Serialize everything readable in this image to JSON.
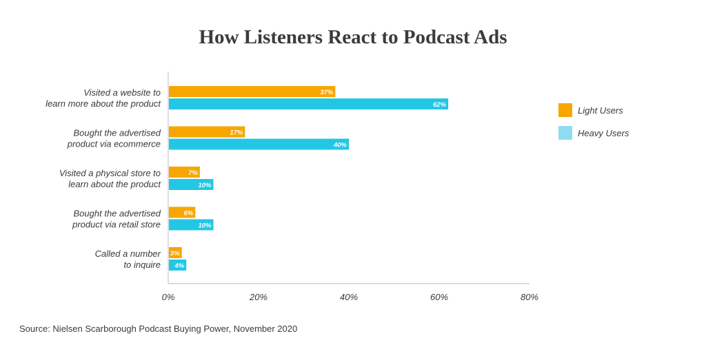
{
  "chart_data": {
    "type": "bar",
    "orientation": "horizontal",
    "title": "How Listeners React to Podcast Ads",
    "categories": [
      [
        "Visited a website to",
        "learn more about the product"
      ],
      [
        "Bought the advertised",
        "product via ecommerce"
      ],
      [
        "Visited a physical store to",
        "learn about the product"
      ],
      [
        "Bought the advertised",
        "product via retail store"
      ],
      [
        "Called a number",
        "to inquire"
      ]
    ],
    "series": [
      {
        "name": "Light Users",
        "color": "#F7A600",
        "values": [
          37,
          17,
          7,
          6,
          3
        ],
        "labels": [
          "37%",
          "17%",
          "7%",
          "6%",
          "3%"
        ]
      },
      {
        "name": "Heavy Users",
        "color": "#22C7E5",
        "legend_color": "#8EDDF0",
        "values": [
          62,
          40,
          10,
          10,
          4
        ],
        "labels": [
          "62%",
          "40%",
          "10%",
          "10%",
          "4%"
        ]
      }
    ],
    "xlim": [
      0,
      80
    ],
    "xticks": [
      0,
      20,
      40,
      60,
      80
    ],
    "xtick_labels": [
      "0%",
      "20%",
      "40%",
      "60%",
      "80%"
    ],
    "grid": false,
    "legend_position": "right"
  },
  "source": "Source: Nielsen Scarborough Podcast Buying Power, November 2020"
}
